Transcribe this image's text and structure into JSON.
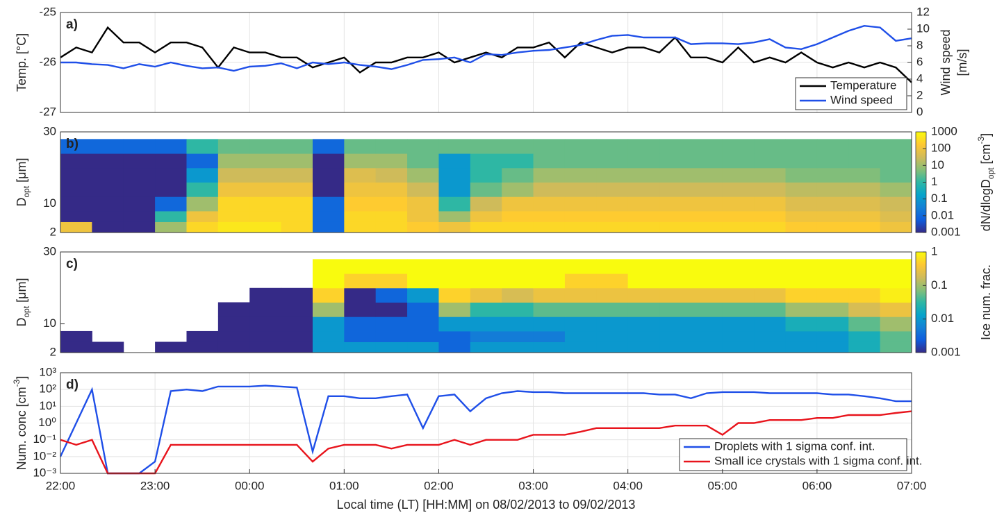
{
  "chart_data": [
    {
      "type": "line",
      "panel_label": "a)",
      "ylabel": "Temp. [°C]",
      "y2label": [
        "Wind speed",
        "[m/s]"
      ],
      "x": [
        "22:00",
        "22:10",
        "22:20",
        "22:30",
        "22:40",
        "22:50",
        "23:00",
        "23:10",
        "23:20",
        "23:30",
        "23:40",
        "23:50",
        "00:00",
        "00:10",
        "00:20",
        "00:30",
        "00:40",
        "00:50",
        "01:00",
        "01:10",
        "01:20",
        "01:30",
        "01:40",
        "01:50",
        "02:00",
        "02:10",
        "02:20",
        "02:30",
        "02:40",
        "02:50",
        "03:00",
        "03:10",
        "03:20",
        "03:30",
        "03:40",
        "03:50",
        "04:00",
        "04:10",
        "04:20",
        "04:30",
        "04:40",
        "04:50",
        "05:00",
        "05:10",
        "05:20",
        "05:30",
        "05:40",
        "05:50",
        "06:00",
        "06:10",
        "06:20",
        "06:30",
        "06:40",
        "06:50",
        "07:00"
      ],
      "xlim": [
        "22:00",
        "07:00"
      ],
      "ylim": [
        -27,
        -25
      ],
      "yticks": [
        -27,
        -26,
        -25
      ],
      "y2lim": [
        0,
        12
      ],
      "y2ticks": [
        0,
        2,
        4,
        6,
        8,
        10,
        12
      ],
      "grid": true,
      "legend": "lower right",
      "series": [
        {
          "name": "Temperature",
          "color": "#000000",
          "values": [
            -25.9,
            -25.7,
            -25.8,
            -25.3,
            -25.6,
            -25.6,
            -25.8,
            -25.6,
            -25.6,
            -25.7,
            -26.1,
            -25.7,
            -25.8,
            -25.8,
            -25.9,
            -25.9,
            -26.1,
            -26.0,
            -25.9,
            -26.2,
            -26.0,
            -26.0,
            -25.9,
            -25.9,
            -25.8,
            -26.0,
            -25.9,
            -25.8,
            -25.9,
            -25.7,
            -25.7,
            -25.6,
            -25.9,
            -25.6,
            -25.7,
            -25.8,
            -25.7,
            -25.7,
            -25.8,
            -25.5,
            -25.9,
            -25.9,
            -26.0,
            -25.7,
            -26.0,
            -25.9,
            -26.0,
            -25.8,
            -26.0,
            -26.1,
            -26.0,
            -26.1,
            -26.0,
            -26.1,
            -26.4
          ]
        },
        {
          "name": "Wind speed",
          "color": "#1f4fe8",
          "axis": "y2",
          "values": [
            6.0,
            6.0,
            5.8,
            5.7,
            5.3,
            5.8,
            5.5,
            6.0,
            5.6,
            5.3,
            5.4,
            5.0,
            5.5,
            5.6,
            5.9,
            5.3,
            6.0,
            5.8,
            6.0,
            5.7,
            5.5,
            5.2,
            5.7,
            6.3,
            6.4,
            6.6,
            6.0,
            7.0,
            6.9,
            7.2,
            7.4,
            7.5,
            7.8,
            8.1,
            8.7,
            9.2,
            9.3,
            9.0,
            9.0,
            9.0,
            8.2,
            8.3,
            8.3,
            8.2,
            8.4,
            8.8,
            7.8,
            7.6,
            8.2,
            9.0,
            9.8,
            10.4,
            10.2,
            8.6,
            8.9
          ]
        }
      ]
    },
    {
      "type": "heatmap",
      "panel_label": "b)",
      "ylabel": [
        "D",
        "opt",
        " [μm]"
      ],
      "x": [
        "22:00",
        "22:20",
        "22:40",
        "23:00",
        "23:20",
        "23:40",
        "00:00",
        "00:20",
        "00:40",
        "01:00",
        "01:20",
        "01:40",
        "02:00",
        "02:20",
        "02:40",
        "03:00",
        "03:20",
        "03:40",
        "04:00",
        "04:20",
        "04:40",
        "05:00",
        "05:20",
        "05:40",
        "06:00",
        "06:20",
        "06:40"
      ],
      "xlim": [
        "22:00",
        "07:00"
      ],
      "y_edges": [
        2,
        5,
        8,
        12,
        16,
        20,
        24,
        28
      ],
      "ylim": [
        2,
        30
      ],
      "yticks": [
        2,
        10,
        30
      ],
      "z": [
        [
          100,
          0.001,
          0.001,
          10,
          300,
          500,
          500,
          300,
          0.01,
          300,
          300,
          200,
          100,
          300,
          300,
          300,
          300,
          300,
          300,
          300,
          300,
          300,
          300,
          200,
          200,
          200,
          100
        ],
        [
          0.001,
          0.001,
          0.001,
          1,
          100,
          300,
          300,
          300,
          0.01,
          300,
          300,
          100,
          10,
          100,
          200,
          200,
          200,
          200,
          200,
          200,
          200,
          200,
          200,
          100,
          100,
          100,
          50
        ],
        [
          0.001,
          0.001,
          0.001,
          0.01,
          10,
          300,
          300,
          300,
          0.01,
          200,
          200,
          100,
          1,
          30,
          100,
          100,
          100,
          100,
          100,
          100,
          100,
          100,
          100,
          50,
          50,
          50,
          30
        ],
        [
          0.001,
          0.001,
          0.001,
          0.001,
          1,
          100,
          100,
          100,
          0.001,
          100,
          100,
          30,
          0.1,
          3,
          10,
          30,
          30,
          30,
          30,
          30,
          30,
          30,
          30,
          20,
          20,
          20,
          10
        ],
        [
          0.001,
          0.001,
          0.001,
          0.001,
          0.1,
          30,
          30,
          30,
          0.001,
          50,
          30,
          10,
          0.1,
          1,
          3,
          10,
          10,
          10,
          10,
          10,
          10,
          10,
          10,
          5,
          5,
          5,
          3
        ],
        [
          0.001,
          0.001,
          0.001,
          0.001,
          0.01,
          10,
          10,
          10,
          0.001,
          10,
          10,
          3,
          0.1,
          1,
          1,
          3,
          3,
          3,
          3,
          3,
          3,
          3,
          3,
          3,
          3,
          3,
          3
        ],
        [
          0.01,
          0.01,
          0.01,
          0.01,
          1,
          3,
          3,
          3,
          0.01,
          3,
          3,
          3,
          3,
          3,
          3,
          3,
          3,
          3,
          3,
          3,
          3,
          3,
          3,
          3,
          3,
          3,
          3
        ]
      ],
      "colormap": "parula",
      "cscale": "log",
      "clim": [
        0.001,
        1000
      ],
      "cticks": [
        1000,
        100,
        10,
        1,
        0.1,
        0.01,
        0.001
      ],
      "clabel": [
        "dN/dlogD",
        "opt",
        " [cm",
        "-3",
        "]"
      ]
    },
    {
      "type": "heatmap",
      "panel_label": "c)",
      "ylabel": [
        "D",
        "opt",
        " [μm]"
      ],
      "x": [
        "22:00",
        "22:20",
        "22:40",
        "23:00",
        "23:20",
        "23:40",
        "00:00",
        "00:20",
        "00:40",
        "01:00",
        "01:20",
        "01:40",
        "02:00",
        "02:20",
        "02:40",
        "03:00",
        "03:20",
        "03:40",
        "04:00",
        "04:20",
        "04:40",
        "05:00",
        "05:20",
        "05:40",
        "06:00",
        "06:20",
        "06:40"
      ],
      "xlim": [
        "22:00",
        "07:00"
      ],
      "y_edges": [
        2,
        5,
        8,
        12,
        16,
        20,
        24,
        28
      ],
      "ylim": [
        2,
        30
      ],
      "yticks": [
        2,
        10,
        30
      ],
      "z": [
        [
          0.001,
          0.001,
          null,
          0.001,
          0.001,
          0.001,
          0.001,
          0.001,
          0.01,
          0.01,
          0.01,
          0.01,
          0.003,
          0.01,
          0.01,
          0.01,
          0.01,
          0.01,
          0.01,
          0.01,
          0.01,
          0.01,
          0.01,
          0.01,
          0.01,
          0.02,
          0.05
        ],
        [
          0.001,
          null,
          null,
          null,
          0.001,
          0.001,
          0.001,
          0.001,
          0.01,
          0.003,
          0.003,
          0.003,
          0.003,
          0.005,
          0.005,
          0.005,
          0.01,
          0.01,
          0.01,
          0.01,
          0.01,
          0.01,
          0.01,
          0.01,
          0.01,
          0.02,
          0.05
        ],
        [
          null,
          null,
          null,
          null,
          null,
          0.001,
          0.001,
          0.001,
          0.01,
          0.003,
          0.003,
          0.003,
          0.01,
          0.01,
          0.01,
          0.01,
          0.01,
          0.01,
          0.01,
          0.01,
          0.01,
          0.01,
          0.01,
          0.02,
          0.02,
          0.05,
          0.1
        ],
        [
          null,
          null,
          null,
          null,
          null,
          0.001,
          0.001,
          0.001,
          0.1,
          0.001,
          0.001,
          0.003,
          0.1,
          0.03,
          0.03,
          0.05,
          0.05,
          0.05,
          0.05,
          0.05,
          0.05,
          0.05,
          0.05,
          0.1,
          0.1,
          0.2,
          0.3
        ],
        [
          null,
          null,
          null,
          null,
          null,
          null,
          0.001,
          0.001,
          0.5,
          0.001,
          0.003,
          0.01,
          0.5,
          0.3,
          0.2,
          0.3,
          0.3,
          0.3,
          0.3,
          0.3,
          0.3,
          0.3,
          0.3,
          0.5,
          0.5,
          0.5,
          0.8
        ],
        [
          null,
          null,
          null,
          null,
          null,
          null,
          null,
          null,
          1,
          0.5,
          0.5,
          1,
          1,
          1,
          1,
          1,
          0.5,
          0.5,
          1,
          1,
          1,
          1,
          1,
          1,
          1,
          1,
          1
        ],
        [
          null,
          null,
          null,
          null,
          null,
          null,
          null,
          null,
          1,
          1,
          1,
          1,
          1,
          1,
          1,
          1,
          1,
          1,
          1,
          1,
          1,
          1,
          1,
          1,
          1,
          1,
          1
        ]
      ],
      "colormap": "parula",
      "cscale": "log",
      "clim": [
        0.001,
        1
      ],
      "cticks": [
        1,
        0.1,
        0.01,
        0.001
      ],
      "clabel": [
        "Ice num. frac."
      ]
    },
    {
      "type": "line",
      "panel_label": "d)",
      "ylabel": [
        "Num. conc [cm",
        "-3",
        "]"
      ],
      "x": [
        "22:00",
        "22:10",
        "22:20",
        "22:30",
        "22:40",
        "22:50",
        "23:00",
        "23:10",
        "23:20",
        "23:30",
        "23:40",
        "23:50",
        "00:00",
        "00:10",
        "00:20",
        "00:30",
        "00:40",
        "00:50",
        "01:00",
        "01:10",
        "01:20",
        "01:30",
        "01:40",
        "01:50",
        "02:00",
        "02:10",
        "02:20",
        "02:30",
        "02:40",
        "02:50",
        "03:00",
        "03:10",
        "03:20",
        "03:30",
        "03:40",
        "03:50",
        "04:00",
        "04:10",
        "04:20",
        "04:30",
        "04:40",
        "04:50",
        "05:00",
        "05:10",
        "05:20",
        "05:30",
        "05:40",
        "05:50",
        "06:00",
        "06:10",
        "06:20",
        "06:30",
        "06:40",
        "06:50",
        "07:00"
      ],
      "xlim": [
        "22:00",
        "07:00"
      ],
      "xticks": [
        "22:00",
        "23:00",
        "00:00",
        "01:00",
        "02:00",
        "03:00",
        "04:00",
        "05:00",
        "06:00",
        "07:00"
      ],
      "xlabel": "Local time (LT) [HH:MM] on 08/02/2013 to 09/02/2013",
      "yscale": "log",
      "ylim": [
        0.001,
        1000
      ],
      "yticks": [
        {
          "value": 0.001,
          "label": "10⁻³"
        },
        {
          "value": 0.01,
          "label": "10⁻²"
        },
        {
          "value": 0.1,
          "label": "10⁻¹"
        },
        {
          "value": 1,
          "label": "10⁰"
        },
        {
          "value": 10,
          "label": "10¹"
        },
        {
          "value": 100,
          "label": "10²"
        },
        {
          "value": 1000,
          "label": "10³"
        }
      ],
      "grid": true,
      "legend": "lower right",
      "series": [
        {
          "name": "Droplets with 1 sigma conf. int.",
          "color": "#1f4fe8",
          "values": [
            0.01,
            1,
            100,
            0.001,
            0.001,
            0.001,
            0.005,
            80,
            100,
            80,
            150,
            150,
            150,
            170,
            150,
            130,
            0.02,
            40,
            40,
            30,
            30,
            40,
            50,
            0.5,
            40,
            50,
            5,
            30,
            60,
            80,
            70,
            70,
            60,
            60,
            60,
            60,
            60,
            60,
            50,
            50,
            30,
            60,
            70,
            70,
            70,
            60,
            60,
            60,
            60,
            50,
            50,
            40,
            30,
            20,
            20
          ]
        },
        {
          "name": "Small ice crystals with 1 sigma conf. int.",
          "color": "#e8141c",
          "values": [
            0.1,
            0.05,
            0.1,
            0.001,
            0.001,
            0.001,
            0.001,
            0.05,
            0.05,
            0.05,
            0.05,
            0.05,
            0.05,
            0.05,
            0.05,
            0.05,
            0.005,
            0.03,
            0.05,
            0.05,
            0.05,
            0.03,
            0.05,
            0.05,
            0.05,
            0.1,
            0.05,
            0.1,
            0.1,
            0.1,
            0.2,
            0.2,
            0.2,
            0.3,
            0.5,
            0.5,
            0.5,
            0.5,
            0.5,
            0.7,
            0.7,
            0.7,
            0.2,
            1,
            1,
            1.5,
            1.5,
            1.5,
            2,
            2,
            3,
            3,
            3,
            4,
            5
          ]
        }
      ]
    }
  ]
}
